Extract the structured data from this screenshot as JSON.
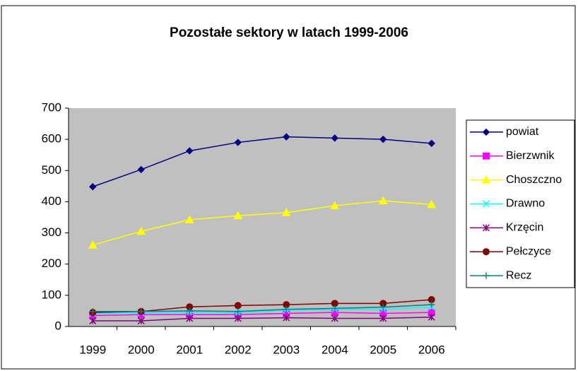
{
  "chart_data": {
    "type": "line",
    "title": "Pozostałe sektory w latach 1999-2006",
    "categories": [
      "1999",
      "2000",
      "2001",
      "2002",
      "2003",
      "2004",
      "2005",
      "2006"
    ],
    "ylim": [
      0,
      700
    ],
    "yticks": [
      0,
      100,
      200,
      300,
      400,
      500,
      600,
      700
    ],
    "grid": false,
    "legend": "right",
    "plot_background": "#c0c0c0",
    "series": [
      {
        "name": "powiat",
        "color": "#000080",
        "marker": "diamond",
        "values": [
          448,
          503,
          563,
          590,
          608,
          604,
          600,
          587
        ]
      },
      {
        "name": "Bierzwnik",
        "color": "#ff00ff",
        "marker": "square",
        "values": [
          35,
          38,
          38,
          38,
          42,
          45,
          42,
          45
        ]
      },
      {
        "name": "Choszczno",
        "color": "#ffff00",
        "marker": "triangle",
        "values": [
          261,
          305,
          342,
          355,
          365,
          387,
          403,
          391
        ]
      },
      {
        "name": "Drawno",
        "color": "#00ffff",
        "marker": "x",
        "values": [
          42,
          44,
          45,
          44,
          52,
          55,
          55,
          62
        ]
      },
      {
        "name": "Krzęcin",
        "color": "#800080",
        "marker": "star",
        "values": [
          18,
          18,
          26,
          26,
          28,
          26,
          26,
          30
        ]
      },
      {
        "name": "Pełczyce",
        "color": "#800000",
        "marker": "circle",
        "values": [
          45,
          48,
          63,
          67,
          70,
          74,
          74,
          86
        ]
      },
      {
        "name": "Recz",
        "color": "#008080",
        "marker": "plus",
        "values": [
          48,
          48,
          50,
          48,
          55,
          58,
          62,
          70
        ]
      }
    ]
  }
}
